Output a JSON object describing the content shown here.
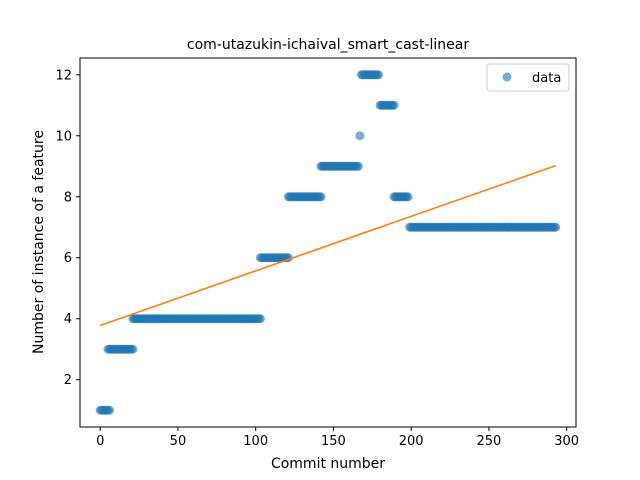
{
  "chart_data": {
    "type": "scatter",
    "title": "com-utazukin-ichaival_smart_cast-linear",
    "xlabel": "Commit number",
    "ylabel": "Number of instance of a feature",
    "xlim": [
      -13,
      306
    ],
    "ylim": [
      0.45,
      12.55
    ],
    "xticks": [
      0,
      50,
      100,
      150,
      200,
      250,
      300
    ],
    "yticks": [
      2,
      4,
      6,
      8,
      10,
      12
    ],
    "xtick_labels": [
      "0",
      "50",
      "100",
      "150",
      "200",
      "250",
      "300"
    ],
    "ytick_labels": [
      "2",
      "4",
      "6",
      "8",
      "10",
      "12"
    ],
    "legend": {
      "entries": [
        "data"
      ],
      "placement": "top-right"
    },
    "colors": {
      "data": "#1f77b4",
      "fit": "#ff7f0e"
    },
    "series": [
      {
        "name": "data",
        "kind": "points",
        "segments": [
          {
            "x_start": 0,
            "x_end": 6,
            "y": 1
          },
          {
            "x_start": 5,
            "x_end": 21,
            "y": 3
          },
          {
            "x_start": 21,
            "x_end": 103,
            "y": 4
          },
          {
            "x_start": 103,
            "x_end": 121,
            "y": 6
          },
          {
            "x_start": 121,
            "x_end": 142,
            "y": 8
          },
          {
            "x_start": 142,
            "x_end": 166,
            "y": 9
          },
          {
            "x_start": 167,
            "x_end": 167,
            "y": 10
          },
          {
            "x_start": 168,
            "x_end": 179,
            "y": 12
          },
          {
            "x_start": 180,
            "x_end": 189,
            "y": 11
          },
          {
            "x_start": 189,
            "x_end": 198,
            "y": 8
          },
          {
            "x_start": 199,
            "x_end": 293,
            "y": 7
          }
        ]
      },
      {
        "kind": "line",
        "x": [
          0,
          293
        ],
        "y": [
          3.78,
          9.02
        ]
      }
    ]
  }
}
